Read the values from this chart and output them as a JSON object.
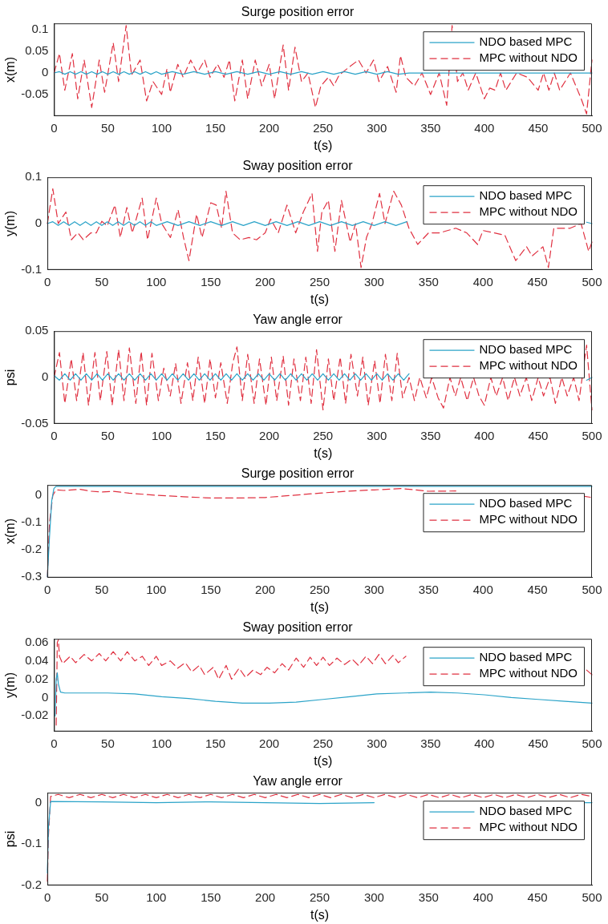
{
  "chart_data": [
    {
      "type": "line",
      "title": "Surge position error",
      "xlabel": "t(s)",
      "ylabel": "x(m)",
      "xlim": [
        0,
        500
      ],
      "xticks": [
        0,
        50,
        100,
        150,
        200,
        250,
        300,
        350,
        400,
        450,
        500
      ],
      "ylim": [
        -0.1,
        0.115
      ],
      "yticks": [
        -0.05,
        0,
        0.05,
        0.1
      ],
      "legend": "top right",
      "series": [
        {
          "name": "NDO based MPC",
          "color": "#2aa3c8",
          "line_style": "solid",
          "x": [
            0,
            5,
            10,
            15,
            20,
            25,
            30,
            35,
            40,
            45,
            50,
            55,
            60,
            65,
            70,
            75,
            80,
            85,
            90,
            95,
            100,
            110,
            120,
            130,
            140,
            150,
            160,
            170,
            180,
            190,
            200,
            210,
            220,
            230,
            240,
            250,
            260,
            270,
            280,
            290,
            300,
            310,
            320,
            330,
            360,
            400,
            440,
            480,
            500
          ],
          "values": [
            0,
            0.003,
            -0.003,
            0.003,
            -0.003,
            0.003,
            -0.003,
            0.003,
            -0.003,
            0.003,
            -0.003,
            0.003,
            -0.003,
            0.003,
            -0.003,
            0.003,
            -0.003,
            0.003,
            -0.003,
            0.003,
            -0.003,
            0.003,
            -0.003,
            0.003,
            -0.003,
            0.003,
            -0.003,
            0.003,
            -0.003,
            0.003,
            -0.003,
            0.003,
            -0.003,
            0.003,
            -0.003,
            0.003,
            -0.003,
            0.003,
            -0.003,
            0.003,
            -0.003,
            0.003,
            -0.003,
            0,
            0,
            0,
            0,
            0,
            0
          ]
        },
        {
          "name": "MPC without NDO",
          "color": "#e03040",
          "line_style": "dashed",
          "x": [
            0,
            5,
            10,
            17,
            22,
            28,
            35,
            42,
            47,
            55,
            60,
            67,
            72,
            80,
            86,
            92,
            100,
            105,
            108,
            115,
            120,
            127,
            133,
            140,
            145,
            152,
            158,
            163,
            168,
            175,
            180,
            187,
            193,
            200,
            205,
            213,
            218,
            224,
            230,
            236,
            243,
            248,
            255,
            260,
            265,
            275,
            283,
            290,
            297,
            302,
            310,
            318,
            322,
            327,
            335,
            342,
            350,
            358,
            365,
            370,
            375,
            380,
            385,
            392,
            400,
            405,
            410,
            415,
            420,
            430,
            440,
            450,
            455,
            460,
            465,
            470,
            480,
            490,
            495,
            500
          ],
          "values": [
            0,
            0.045,
            -0.04,
            0.045,
            -0.06,
            0.03,
            -0.08,
            0.03,
            -0.045,
            0.07,
            -0.02,
            0.11,
            -0.005,
            0.03,
            -0.065,
            -0.02,
            -0.05,
            0.01,
            -0.045,
            0.02,
            -0.01,
            0.03,
            0,
            0.03,
            -0.01,
            0.02,
            -0.01,
            0.03,
            -0.065,
            0.03,
            -0.06,
            0.03,
            -0.03,
            0.02,
            -0.06,
            0.065,
            -0.04,
            0.06,
            -0.02,
            0,
            -0.08,
            -0.03,
            -0.01,
            -0.03,
            -0.005,
            0.015,
            0.03,
            0,
            0.03,
            -0.02,
            0.015,
            -0.045,
            0.04,
            -0.01,
            -0.03,
            0,
            -0.05,
            0,
            -0.075,
            0.11,
            -0.02,
            0,
            -0.04,
            0,
            -0.06,
            -0.035,
            -0.04,
            0,
            -0.04,
            0,
            -0.01,
            -0.04,
            0,
            -0.04,
            0,
            -0.04,
            0,
            -0.06,
            -0.095,
            0.03
          ]
        }
      ]
    },
    {
      "type": "line",
      "title": "Sway position error",
      "xlabel": "t(s)",
      "ylabel": "y(m)",
      "xlim": [
        0,
        500
      ],
      "xticks": [
        0,
        50,
        100,
        150,
        200,
        250,
        300,
        350,
        400,
        450,
        500
      ],
      "ylim": [
        -0.1,
        0.1
      ],
      "yticks": [
        -0.1,
        0,
        0.1
      ],
      "legend": "top right",
      "series": [
        {
          "name": "NDO based MPC",
          "color": "#2aa3c8",
          "line_style": "solid",
          "x": [
            0,
            5,
            10,
            15,
            20,
            25,
            30,
            35,
            40,
            45,
            50,
            55,
            60,
            65,
            70,
            75,
            80,
            85,
            90,
            95,
            100,
            110,
            120,
            130,
            140,
            150,
            160,
            170,
            180,
            190,
            200,
            210,
            220,
            230,
            240,
            250,
            260,
            270,
            280,
            290,
            300,
            310,
            320,
            330,
            360,
            400,
            440,
            480,
            495,
            500
          ],
          "values": [
            0,
            0.004,
            -0.004,
            0.004,
            -0.004,
            0.004,
            -0.004,
            0.004,
            -0.004,
            0.004,
            -0.004,
            0.004,
            -0.004,
            0.004,
            -0.004,
            0.004,
            -0.004,
            0.004,
            -0.004,
            0.004,
            -0.004,
            0.004,
            -0.004,
            0.004,
            -0.004,
            0.004,
            -0.004,
            0.004,
            -0.004,
            0.004,
            -0.004,
            0.004,
            -0.004,
            0.004,
            -0.004,
            0.004,
            -0.004,
            0.004,
            -0.004,
            0.004,
            -0.004,
            0.004,
            -0.004,
            0.004,
            null,
            null,
            null,
            null,
            0.003,
            0
          ]
        },
        {
          "name": "MPC without NDO",
          "color": "#e03040",
          "line_style": "dashed",
          "x": [
            0,
            5,
            10,
            17,
            22,
            28,
            33,
            40,
            45,
            50,
            55,
            62,
            67,
            73,
            78,
            87,
            92,
            100,
            105,
            113,
            120,
            125,
            130,
            137,
            142,
            150,
            155,
            160,
            164,
            170,
            177,
            185,
            192,
            200,
            205,
            212,
            220,
            228,
            235,
            243,
            248,
            252,
            258,
            264,
            270,
            278,
            283,
            288,
            293,
            298,
            305,
            310,
            318,
            325,
            332,
            340,
            350,
            360,
            375,
            385,
            395,
            400,
            410,
            420,
            430,
            440,
            445,
            455,
            460,
            465,
            480,
            490,
            497,
            500
          ],
          "values": [
            0,
            0.075,
            0,
            0.025,
            -0.035,
            -0.02,
            -0.035,
            -0.02,
            -0.02,
            0.005,
            -0.005,
            0.04,
            -0.03,
            0.035,
            -0.02,
            0.055,
            -0.035,
            0.055,
            0,
            -0.03,
            0.03,
            -0.03,
            -0.08,
            0.02,
            -0.03,
            0.045,
            0.04,
            -0.01,
            0.07,
            -0.02,
            -0.035,
            -0.03,
            -0.035,
            -0.02,
            0.01,
            -0.02,
            0.04,
            -0.02,
            0.025,
            0.065,
            -0.06,
            0.025,
            0.05,
            -0.06,
            0.05,
            -0.04,
            0,
            -0.095,
            -0.03,
            0,
            0.065,
            0,
            0.07,
            0.04,
            -0.01,
            -0.045,
            -0.02,
            -0.02,
            -0.01,
            -0.02,
            -0.045,
            -0.015,
            -0.02,
            -0.025,
            -0.08,
            -0.05,
            -0.07,
            -0.05,
            -0.095,
            -0.01,
            -0.01,
            0,
            -0.06,
            -0.04
          ]
        }
      ]
    },
    {
      "type": "line",
      "title": "Yaw angle error",
      "xlabel": "t(s)",
      "ylabel": "psi",
      "xlim": [
        0,
        500
      ],
      "xticks": [
        0,
        50,
        100,
        150,
        200,
        250,
        300,
        350,
        400,
        450,
        500
      ],
      "ylim": [
        -0.05,
        0.05
      ],
      "yticks": [
        -0.05,
        0,
        0.05
      ],
      "legend": "top right",
      "series": [
        {
          "name": "NDO based MPC",
          "color": "#2aa3c8",
          "line_style": "solid",
          "x": [
            0,
            5,
            10,
            15,
            20,
            25,
            30,
            35,
            40,
            45,
            50,
            55,
            60,
            65,
            70,
            75,
            80,
            85,
            90,
            95,
            100,
            105,
            110,
            115,
            120,
            125,
            130,
            135,
            140,
            145,
            150,
            155,
            160,
            165,
            170,
            175,
            180,
            185,
            190,
            195,
            200,
            205,
            210,
            215,
            220,
            225,
            230,
            235,
            240,
            245,
            250,
            255,
            260,
            265,
            270,
            275,
            280,
            285,
            290,
            295,
            300,
            305,
            310,
            315,
            320,
            325,
            330,
            360,
            400,
            440,
            480,
            490,
            495,
            500
          ],
          "values": [
            0.002,
            -0.003,
            0.004,
            -0.003,
            0.004,
            -0.003,
            0.004,
            -0.003,
            0.004,
            -0.003,
            0.004,
            -0.003,
            0.004,
            -0.003,
            0.004,
            -0.003,
            0.004,
            -0.003,
            0.004,
            -0.003,
            0.004,
            -0.003,
            0.004,
            -0.003,
            0.004,
            -0.003,
            0.004,
            -0.003,
            0.004,
            -0.003,
            0.004,
            -0.003,
            0.004,
            -0.003,
            0.004,
            -0.003,
            0.004,
            -0.003,
            0.004,
            -0.003,
            0.004,
            -0.003,
            0.004,
            -0.003,
            0.004,
            -0.003,
            0.004,
            -0.003,
            0.004,
            -0.003,
            0.004,
            -0.003,
            0.004,
            -0.003,
            0.004,
            -0.003,
            0.004,
            -0.003,
            0.004,
            -0.003,
            0.004,
            -0.003,
            0.004,
            -0.003,
            0.004,
            -0.003,
            0.004,
            null,
            null,
            null,
            null,
            null,
            -0.003,
            0
          ]
        },
        {
          "name": "MPC without NDO",
          "color": "#e03040",
          "line_style": "dashed",
          "x": [
            0,
            5,
            10,
            16,
            21,
            27,
            32,
            38,
            43,
            49,
            54,
            60,
            65,
            70,
            76,
            81,
            86,
            91,
            97,
            102,
            108,
            113,
            118,
            124,
            129,
            134,
            140,
            145,
            150,
            155,
            161,
            166,
            170,
            175,
            180,
            186,
            191,
            197,
            202,
            207,
            213,
            218,
            223,
            229,
            234,
            239,
            244,
            250,
            255,
            260,
            266,
            271,
            276,
            282,
            287,
            292,
            298,
            303,
            308,
            314,
            319,
            324,
            330,
            335,
            340,
            346,
            351,
            357,
            362,
            368,
            373,
            378,
            384,
            390,
            395,
            400,
            406,
            411,
            417,
            422,
            428,
            433,
            439,
            444,
            450,
            455,
            461,
            466,
            472,
            477,
            483,
            488,
            495,
            500
          ],
          "values": [
            0,
            0.027,
            -0.028,
            0.02,
            -0.025,
            0.027,
            -0.03,
            0.027,
            -0.025,
            0.028,
            -0.03,
            0.03,
            -0.025,
            0.032,
            -0.028,
            0.028,
            -0.03,
            0.026,
            -0.025,
            0.01,
            -0.02,
            0.015,
            -0.028,
            0.016,
            -0.025,
            0.022,
            -0.028,
            0.02,
            -0.022,
            0.016,
            -0.028,
            0.015,
            0.033,
            -0.025,
            0.025,
            -0.028,
            0.02,
            -0.03,
            0.022,
            -0.025,
            0.023,
            -0.03,
            0.02,
            -0.025,
            0.022,
            -0.028,
            0.03,
            -0.035,
            0.02,
            -0.025,
            0.022,
            -0.028,
            0.025,
            -0.02,
            0.022,
            -0.03,
            0.018,
            -0.028,
            0.025,
            -0.025,
            0.026,
            -0.022,
            0,
            -0.025,
            0,
            -0.022,
            0,
            -0.022,
            -0.033,
            0,
            -0.02,
            0,
            -0.025,
            0,
            -0.02,
            -0.03,
            0,
            -0.02,
            0,
            -0.025,
            0,
            -0.02,
            0,
            -0.025,
            0,
            -0.02,
            0,
            -0.028,
            0,
            -0.02,
            0,
            -0.025,
            0.035,
            -0.035
          ]
        }
      ]
    },
    {
      "type": "line",
      "title": "Surge position error",
      "xlabel": "t(s)",
      "ylabel": "x(m)",
      "xlim": [
        0,
        500
      ],
      "xticks": [
        0,
        50,
        100,
        150,
        200,
        250,
        300,
        350,
        400,
        450,
        500
      ],
      "ylim": [
        -0.303,
        0.038
      ],
      "yticks": [
        -0.3,
        -0.2,
        -0.1,
        0
      ],
      "legend": "top right",
      "series": [
        {
          "name": "NDO based MPC",
          "color": "#2aa3c8",
          "line_style": "solid",
          "x": [
            0,
            2,
            4,
            6,
            8,
            500
          ],
          "values": [
            -0.3,
            -0.15,
            -0.02,
            0.025,
            0.033,
            0.033
          ]
        },
        {
          "name": "MPC without NDO",
          "color": "#e03040",
          "line_style": "dashed",
          "x": [
            0,
            2,
            5,
            8,
            15,
            30,
            40,
            50,
            60,
            75,
            100,
            125,
            150,
            175,
            200,
            225,
            250,
            275,
            300,
            325,
            350,
            375,
            385,
            440,
            492,
            500
          ],
          "values": [
            -0.3,
            -0.1,
            0,
            0.02,
            0.018,
            0.022,
            0.015,
            0.012,
            0.015,
            0.008,
            0,
            -0.005,
            -0.01,
            -0.01,
            -0.008,
            0,
            0.008,
            0.015,
            0.02,
            0.025,
            0.015,
            0.016,
            null,
            null,
            -0.003,
            -0.008
          ]
        }
      ]
    },
    {
      "type": "line",
      "title": "Sway position error",
      "xlabel": "t(s)",
      "ylabel": "y(m)",
      "xlim": [
        0,
        500
      ],
      "xticks": [
        0,
        50,
        100,
        150,
        200,
        250,
        300,
        350,
        400,
        450,
        500
      ],
      "ylim": [
        -0.037,
        0.064
      ],
      "yticks": [
        -0.02,
        0,
        0.02,
        0.04,
        0.06
      ],
      "legend": "top right",
      "series": [
        {
          "name": "NDO based MPC",
          "color": "#2aa3c8",
          "line_style": "solid",
          "x": [
            1,
            2,
            3,
            4,
            6,
            10,
            50,
            75,
            100,
            125,
            150,
            175,
            200,
            225,
            250,
            275,
            300,
            325,
            350,
            375,
            400,
            425,
            450,
            475,
            500
          ],
          "values": [
            -0.02,
            0.02,
            0.027,
            0.015,
            0.006,
            0.005,
            0.005,
            0.004,
            0.001,
            -0.001,
            -0.004,
            -0.006,
            -0.006,
            -0.005,
            -0.002,
            0.001,
            0.004,
            0.005,
            0.006,
            0.005,
            0.003,
            0,
            -0.002,
            -0.004,
            -0.006
          ]
        },
        {
          "name": "MPC without NDO",
          "color": "#e03040",
          "line_style": "dashed",
          "x": [
            2,
            3,
            4,
            5,
            8,
            15,
            20,
            28,
            35,
            42,
            48,
            55,
            62,
            68,
            75,
            82,
            88,
            95,
            100,
            108,
            115,
            122,
            128,
            135,
            140,
            148,
            153,
            160,
            165,
            172,
            178,
            185,
            192,
            198,
            205,
            212,
            218,
            225,
            232,
            238,
            244,
            250,
            256,
            263,
            270,
            277,
            283,
            290,
            296,
            302,
            308,
            315,
            320,
            327,
            400,
            495,
            500
          ],
          "values": [
            -0.03,
            0.06,
            0.063,
            0.045,
            0.037,
            0.045,
            0.038,
            0.047,
            0.04,
            0.048,
            0.04,
            0.05,
            0.04,
            0.05,
            0.04,
            0.045,
            0.035,
            0.045,
            0.035,
            0.04,
            0.032,
            0.038,
            0.028,
            0.035,
            0.025,
            0.033,
            0.02,
            0.035,
            0.02,
            0.032,
            0.022,
            0.03,
            0.025,
            0.033,
            0.027,
            0.037,
            0.03,
            0.043,
            0.033,
            0.044,
            0.035,
            0.044,
            0.035,
            0.043,
            0.036,
            0.042,
            0.035,
            0.045,
            0.037,
            0.047,
            0.037,
            0.046,
            0.038,
            0.045,
            null,
            0.03,
            0.025
          ]
        }
      ]
    },
    {
      "type": "line",
      "title": "Yaw angle error",
      "xlabel": "t(s)",
      "ylabel": "psi",
      "xlim": [
        0,
        500
      ],
      "xticks": [
        0,
        50,
        100,
        150,
        200,
        250,
        300,
        350,
        400,
        450,
        500
      ],
      "ylim": [
        -0.2,
        0.024
      ],
      "yticks": [
        -0.2,
        -0.1,
        0
      ],
      "legend": "top right",
      "series": [
        {
          "name": "NDO based MPC",
          "color": "#2aa3c8",
          "line_style": "solid",
          "x": [
            0,
            1,
            3,
            50,
            100,
            150,
            200,
            250,
            300,
            350,
            400,
            450,
            492,
            500
          ],
          "values": [
            -0.17,
            -0.06,
            0.003,
            0.002,
            0,
            0.002,
            0,
            -0.002,
            0,
            null,
            null,
            null,
            0,
            0
          ]
        },
        {
          "name": "MPC without NDO",
          "color": "#e03040",
          "line_style": "dashed",
          "x": [
            0,
            1,
            3,
            10,
            20,
            30,
            40,
            50,
            60,
            70,
            80,
            90,
            100,
            110,
            120,
            130,
            140,
            150,
            160,
            170,
            180,
            190,
            200,
            210,
            220,
            230,
            240,
            250,
            260,
            270,
            280,
            290,
            300,
            310,
            320,
            330,
            340,
            350,
            360,
            370,
            380,
            390,
            400,
            410,
            420,
            430,
            440,
            450,
            460,
            470,
            480,
            490,
            500
          ],
          "values": [
            -0.19,
            -0.08,
            0.015,
            0.02,
            0.012,
            0.02,
            0.012,
            0.02,
            0.012,
            0.02,
            0.012,
            0.02,
            0.012,
            0.02,
            0.012,
            0.02,
            0.012,
            0.02,
            0.012,
            0.02,
            0.012,
            0.02,
            0.012,
            0.02,
            0.012,
            0.02,
            0.012,
            0.02,
            0.012,
            0.02,
            0.012,
            0.02,
            0.012,
            0.02,
            0.012,
            0.02,
            0.012,
            0.02,
            0.012,
            0.02,
            0.012,
            0.02,
            0.012,
            0.02,
            0.012,
            0.02,
            0.012,
            0.02,
            0.012,
            0.02,
            0.012,
            0.02,
            0.015
          ]
        }
      ]
    }
  ]
}
